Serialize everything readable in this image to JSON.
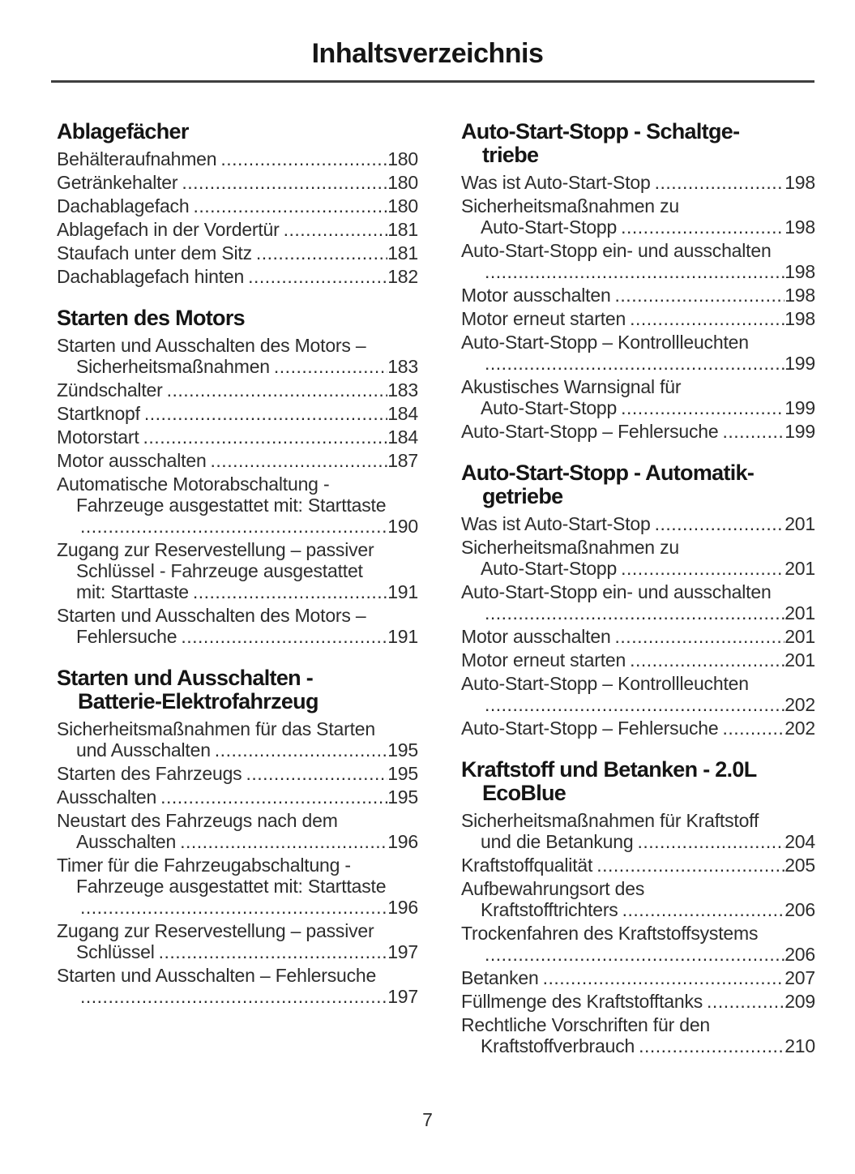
{
  "page": {
    "title": "Inhaltsverzeichnis",
    "footer_page_number": "7"
  },
  "toc": {
    "columns": [
      {
        "sections": [
          {
            "heading_lines": [
              "Ablagefächer"
            ],
            "entries": [
              {
                "lines": [
                  "Behälteraufnahmen"
                ],
                "page": "180"
              },
              {
                "lines": [
                  "Getränkehalter"
                ],
                "page": "180"
              },
              {
                "lines": [
                  "Dachablagefach"
                ],
                "page": "180"
              },
              {
                "lines": [
                  "Ablagefach in der Vordertür"
                ],
                "page": "181"
              },
              {
                "lines": [
                  "Staufach unter dem Sitz"
                ],
                "page": "181"
              },
              {
                "lines": [
                  "Dachablagefach hinten"
                ],
                "page": "182"
              }
            ]
          },
          {
            "heading_lines": [
              "Starten des Motors"
            ],
            "entries": [
              {
                "lines": [
                  "Starten und Ausschalten des Motors –",
                  "Sicherheitsmaßnahmen"
                ],
                "page": "183"
              },
              {
                "lines": [
                  "Zündschalter"
                ],
                "page": "183"
              },
              {
                "lines": [
                  "Startknopf"
                ],
                "page": "184"
              },
              {
                "lines": [
                  "Motorstart"
                ],
                "page": "184"
              },
              {
                "lines": [
                  "Motor ausschalten"
                ],
                "page": "187"
              },
              {
                "lines": [
                  "Automatische Motorabschaltung -",
                  "Fahrzeuge ausgestattet mit: Starttaste",
                  ""
                ],
                "page": "190"
              },
              {
                "lines": [
                  "Zugang zur Reservestellung – passiver",
                  "Schlüssel - Fahrzeuge ausgestattet",
                  "mit: Starttaste"
                ],
                "page": "191"
              },
              {
                "lines": [
                  "Starten und Ausschalten des Motors –",
                  "Fehlersuche"
                ],
                "page": "191"
              }
            ]
          },
          {
            "heading_lines": [
              "Starten und Ausschalten -",
              "Batterie-Elektrofahrzeug"
            ],
            "entries": [
              {
                "lines": [
                  "Sicherheitsmaßnahmen für das Starten",
                  "und Ausschalten"
                ],
                "page": "195"
              },
              {
                "lines": [
                  "Starten des Fahrzeugs"
                ],
                "page": "195"
              },
              {
                "lines": [
                  "Ausschalten"
                ],
                "page": "195"
              },
              {
                "lines": [
                  "Neustart des Fahrzeugs nach dem",
                  "Ausschalten"
                ],
                "page": "196"
              },
              {
                "lines": [
                  "Timer für die Fahrzeugabschaltung -",
                  "Fahrzeuge ausgestattet mit: Starttaste",
                  ""
                ],
                "page": "196"
              },
              {
                "lines": [
                  "Zugang zur Reservestellung – passiver",
                  "Schlüssel"
                ],
                "page": "197"
              },
              {
                "lines": [
                  "Starten und Ausschalten – Fehlersuche",
                  ""
                ],
                "page": "197"
              }
            ]
          }
        ]
      },
      {
        "sections": [
          {
            "heading_lines": [
              "Auto-Start-Stopp - Schaltge-",
              "triebe"
            ],
            "entries": [
              {
                "lines": [
                  "Was ist Auto-Start-Stop"
                ],
                "page": "198"
              },
              {
                "lines": [
                  "Sicherheitsmaßnahmen zu",
                  "Auto-Start-Stopp"
                ],
                "page": "198"
              },
              {
                "lines": [
                  "Auto-Start-Stopp ein- und ausschalten",
                  ""
                ],
                "page": "198"
              },
              {
                "lines": [
                  "Motor ausschalten"
                ],
                "page": "198"
              },
              {
                "lines": [
                  "Motor erneut starten"
                ],
                "page": "198"
              },
              {
                "lines": [
                  "Auto-Start-Stopp – Kontrollleuchten",
                  ""
                ],
                "page": "199"
              },
              {
                "lines": [
                  "Akustisches Warnsignal für",
                  "Auto-Start-Stopp"
                ],
                "page": "199"
              },
              {
                "lines": [
                  "Auto-Start-Stopp – Fehlersuche"
                ],
                "page": "199"
              }
            ]
          },
          {
            "heading_lines": [
              "Auto-Start-Stopp - Automatik-",
              "getriebe"
            ],
            "entries": [
              {
                "lines": [
                  "Was ist Auto-Start-Stop"
                ],
                "page": "201"
              },
              {
                "lines": [
                  "Sicherheitsmaßnahmen zu",
                  "Auto-Start-Stopp"
                ],
                "page": "201"
              },
              {
                "lines": [
                  "Auto-Start-Stopp ein- und ausschalten",
                  ""
                ],
                "page": "201"
              },
              {
                "lines": [
                  "Motor ausschalten"
                ],
                "page": "201"
              },
              {
                "lines": [
                  "Motor erneut starten"
                ],
                "page": "201"
              },
              {
                "lines": [
                  "Auto-Start-Stopp – Kontrollleuchten",
                  ""
                ],
                "page": "202"
              },
              {
                "lines": [
                  "Auto-Start-Stopp – Fehlersuche"
                ],
                "page": "202"
              }
            ]
          },
          {
            "heading_lines": [
              "Kraftstoff und Betanken - 2.0L",
              "EcoBlue"
            ],
            "entries": [
              {
                "lines": [
                  "Sicherheitsmaßnahmen für Kraftstoff",
                  "und die Betankung"
                ],
                "page": "204"
              },
              {
                "lines": [
                  "Kraftstoffqualität"
                ],
                "page": "205"
              },
              {
                "lines": [
                  "Aufbewahrungsort des",
                  "Kraftstofftrichters"
                ],
                "page": "206"
              },
              {
                "lines": [
                  "Trockenfahren des Kraftstoffsystems",
                  ""
                ],
                "page": "206"
              },
              {
                "lines": [
                  "Betanken"
                ],
                "page": "207"
              },
              {
                "lines": [
                  "Füllmenge des Kraftstofftanks"
                ],
                "page": "209"
              },
              {
                "lines": [
                  "Rechtliche Vorschriften für den",
                  "Kraftstoffverbrauch"
                ],
                "page": "210"
              }
            ]
          }
        ]
      }
    ]
  }
}
